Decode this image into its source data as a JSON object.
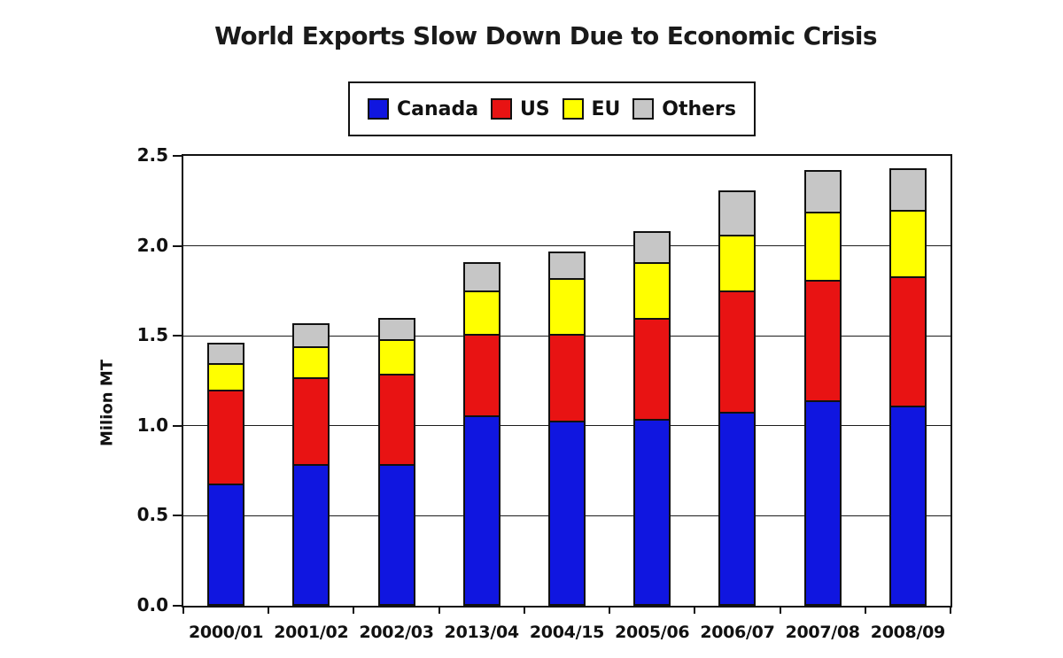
{
  "chart_data": {
    "type": "bar",
    "stacked": true,
    "title": "World Exports Slow Down Due to Economic Crisis",
    "xlabel": "",
    "ylabel": "Milion MT",
    "ylim": [
      0,
      2.5
    ],
    "ytick_step": 0.5,
    "ytick_labels": [
      "0.0",
      "0.5",
      "1.0",
      "1.5",
      "2.0",
      "2.5"
    ],
    "grid": true,
    "legend_position": "top-center",
    "categories": [
      "2000/01",
      "2001/02",
      "2002/03",
      "2013/04",
      "2004/15",
      "2005/06",
      "2006/07",
      "2007/08",
      "2008/09"
    ],
    "series": [
      {
        "name": "Canada",
        "color": "#1016e0",
        "values": [
          0.67,
          0.78,
          0.78,
          1.05,
          1.02,
          1.03,
          1.07,
          1.13,
          1.1
        ]
      },
      {
        "name": "US",
        "color": "#e81313",
        "values": [
          0.52,
          0.48,
          0.5,
          0.45,
          0.48,
          0.56,
          0.67,
          0.67,
          0.72
        ]
      },
      {
        "name": "EU",
        "color": "#ffff00",
        "values": [
          0.15,
          0.17,
          0.19,
          0.24,
          0.31,
          0.31,
          0.31,
          0.38,
          0.37
        ]
      },
      {
        "name": "Others",
        "color": "#c6c6c6",
        "values": [
          0.11,
          0.13,
          0.12,
          0.16,
          0.15,
          0.17,
          0.25,
          0.23,
          0.23
        ]
      }
    ],
    "totals": [
      1.45,
      1.56,
      1.59,
      1.9,
      1.96,
      2.07,
      2.3,
      2.41,
      2.42
    ],
    "outline_color": "#111111",
    "background_color": "#ffffff"
  }
}
